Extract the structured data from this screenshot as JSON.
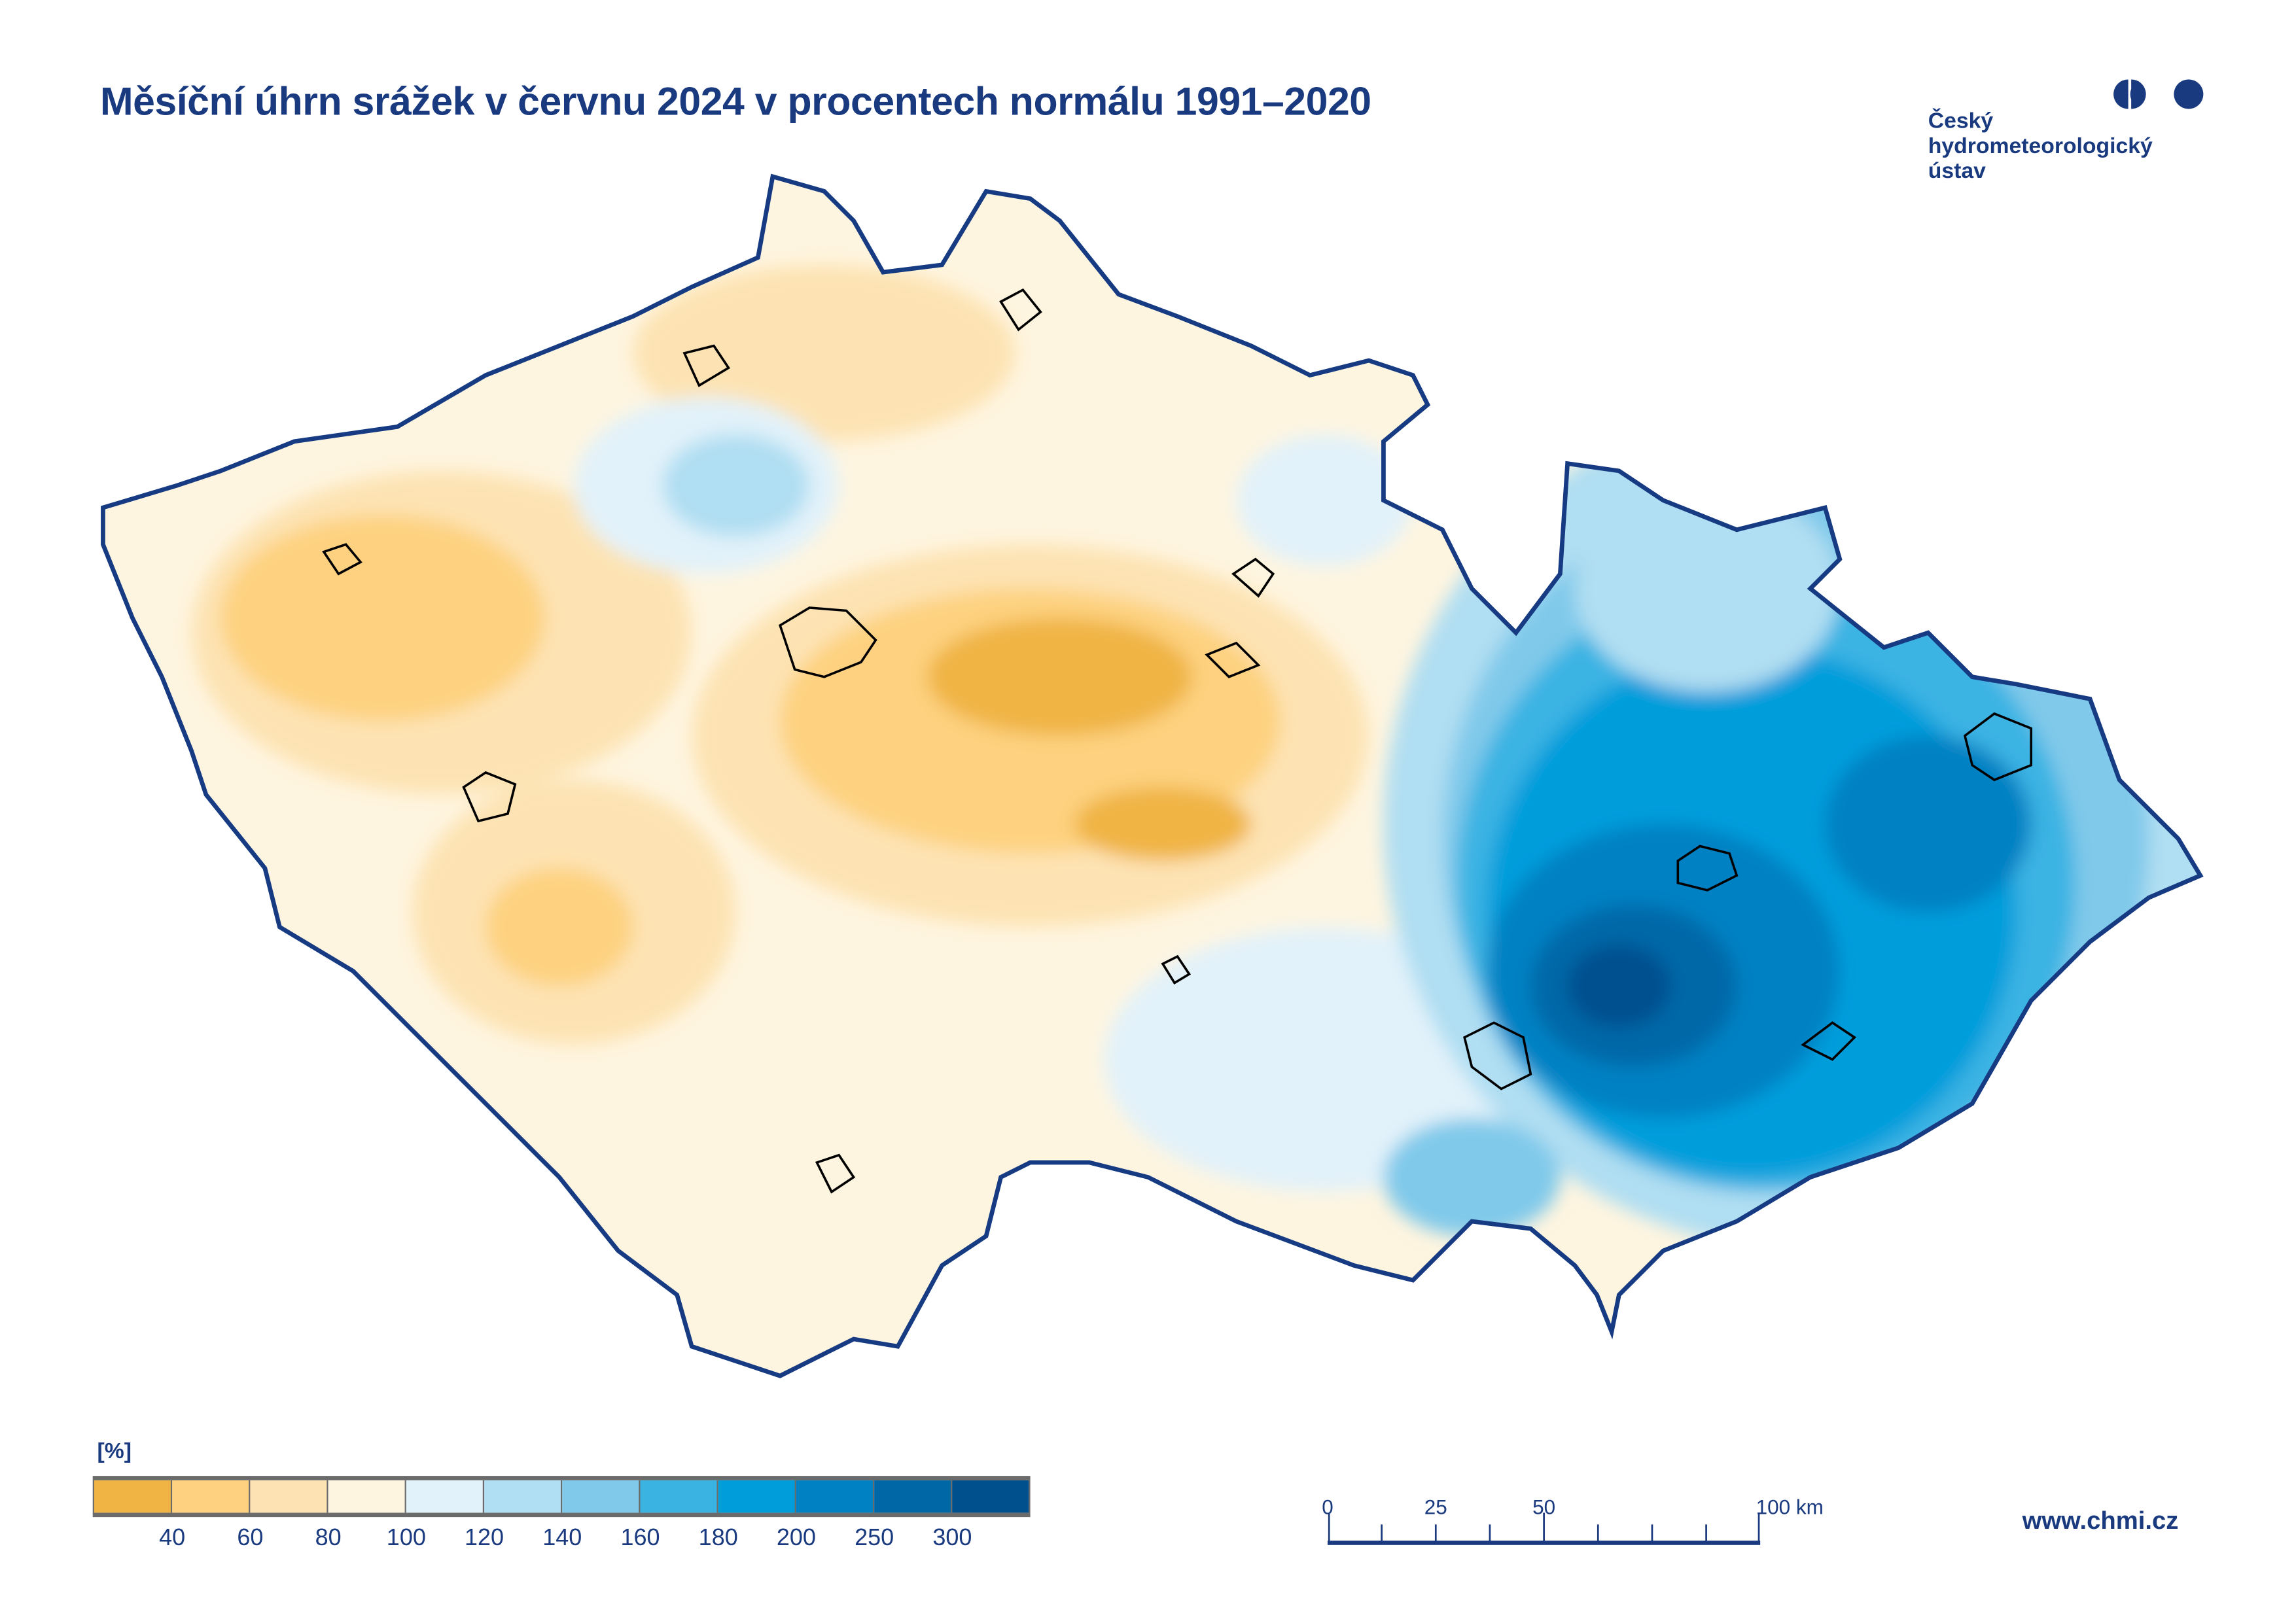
{
  "title": "Měsíční úhrn srážek v červnu 2024 v procentech normálu 1991–2020",
  "logo": {
    "lines": [
      "Český",
      "hydrometeorologický",
      "ústav"
    ],
    "icon": "chmi-logo-icon"
  },
  "legend": {
    "unit": "[%]",
    "colors": [
      "#F0B445",
      "#FDD17F",
      "#FDE3B3",
      "#FEF5E0",
      "#E2F2FA",
      "#B0DEF2",
      "#80C9EA",
      "#3AB3E3",
      "#009DDB",
      "#0081C3",
      "#0067A7",
      "#00508E"
    ],
    "labels": [
      "40",
      "60",
      "80",
      "100",
      "120",
      "140",
      "160",
      "180",
      "200",
      "250",
      "300"
    ]
  },
  "scale": {
    "labels": [
      "0",
      "25",
      "50",
      "100 km"
    ],
    "values_km": [
      0,
      25,
      50,
      100
    ]
  },
  "url": "www.chmi.cz",
  "colors": {
    "text": "#1A3A80",
    "border": "#163B82"
  }
}
